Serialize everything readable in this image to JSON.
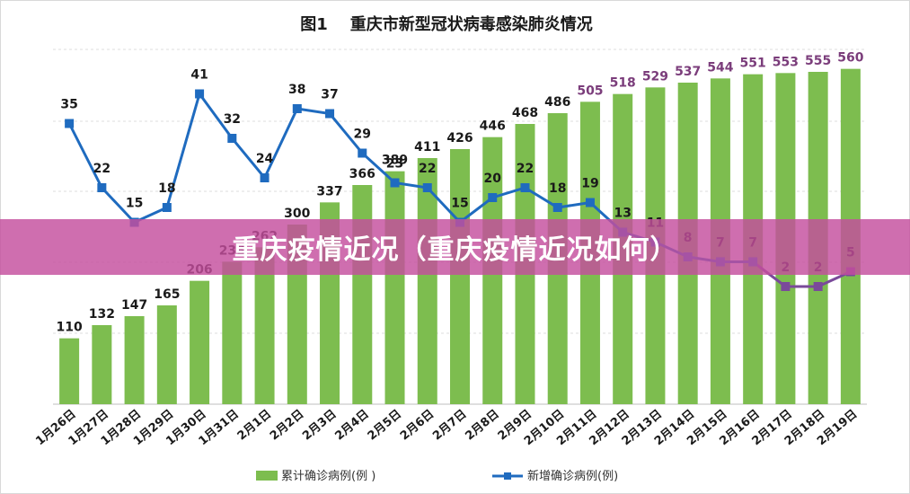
{
  "chart_data": {
    "type": "bar+line",
    "title": "图1    重庆市新型冠状病毒感染肺炎情况",
    "categories": [
      "1月26日",
      "1月27日",
      "1月28日",
      "1月29日",
      "1月30日",
      "1月31日",
      "2月1日",
      "2月2日",
      "2月3日",
      "2月4日",
      "2月5日",
      "2月6日",
      "2月7日",
      "2月8日",
      "2月9日",
      "2月10日",
      "2月11日",
      "2月12日",
      "2月13日",
      "2月14日",
      "2月15日",
      "2月16日",
      "2月17日",
      "2月18日",
      "2月19日"
    ],
    "series": [
      {
        "name": "累计确诊病例(例 )",
        "type": "bar",
        "color": "#7dbd4f",
        "values": [
          110,
          132,
          147,
          165,
          206,
          238,
          262,
          300,
          337,
          366,
          389,
          411,
          426,
          446,
          468,
          486,
          505,
          518,
          529,
          537,
          544,
          551,
          553,
          555,
          560
        ]
      },
      {
        "name": "新增确诊病例(例)",
        "type": "line",
        "color": "#1f6bbf",
        "values": [
          35,
          22,
          15,
          18,
          41,
          32,
          24,
          38,
          37,
          29,
          23,
          22,
          15,
          20,
          22,
          18,
          19,
          13,
          11,
          8,
          7,
          7,
          2,
          2,
          5
        ]
      }
    ],
    "grid": true,
    "legend": "bottom"
  },
  "banner": {
    "text": "重庆疫情近况（重庆疫情近况如何）"
  }
}
